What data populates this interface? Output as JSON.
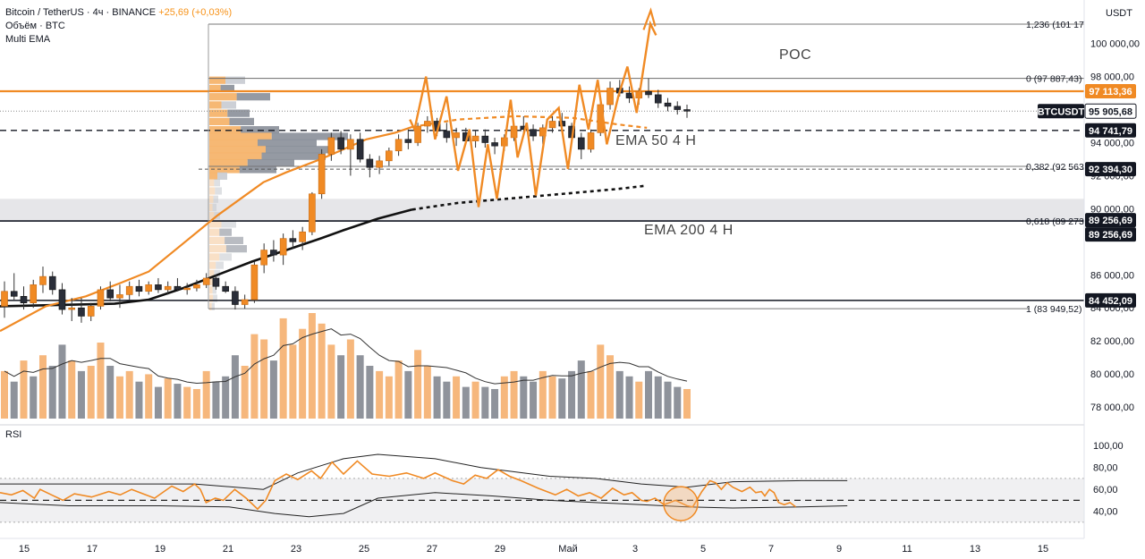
{
  "header": {
    "symbol": "Bitcoin / TetherUS · 4ч · BINANCE",
    "change": "+25,69 (+0,03%)",
    "volume_label": "Объём · BTC",
    "ema_label": "Multi EMA",
    "currency": "USDT",
    "rsi_label": "RSI"
  },
  "chart_data": {
    "type": "line",
    "symbol": "BTCUSDT",
    "timeframe": "4ч",
    "x_ticks": [
      "15",
      "17",
      "19",
      "21",
      "23",
      "25",
      "27",
      "29",
      "Май",
      "3",
      "5",
      "7",
      "9",
      "11",
      "13",
      "15"
    ],
    "y_ticks": [
      "100 000,00",
      "98 000,00",
      "94 000,00",
      "92 000,00",
      "90 000,00",
      "86 000,00",
      "84 000,00",
      "82 000,00",
      "80 000,00",
      "78 000,00"
    ],
    "rsi_ticks": [
      "100,00",
      "80,00",
      "60,00",
      "40,00"
    ],
    "price_tags": [
      {
        "text": "97 113,36",
        "value": 97113.36,
        "style": "orange"
      },
      {
        "text": "BTCUSDT",
        "value": 95905.68,
        "style": "dark-name"
      },
      {
        "text": "95 905,68",
        "value": 95905.68,
        "style": "white"
      },
      {
        "text": "94 741,79",
        "value": 94741.79,
        "style": "dark"
      },
      {
        "text": "92 394,30",
        "value": 92394.3,
        "style": "dark"
      },
      {
        "text": "89 256,69",
        "value": 89256.69,
        "style": "dark"
      },
      {
        "text": "89 256,69",
        "value": 89256.69,
        "style": "dark"
      },
      {
        "text": "84 452,09",
        "value": 84452.09,
        "style": "dark"
      }
    ],
    "fib_levels": [
      {
        "label": "0 (97 887,43)",
        "value": 97887.43
      },
      {
        "label": "0,382 (92 563",
        "value": 92563
      },
      {
        "label": "0,618 (89 273",
        "value": 89273
      },
      {
        "label": "1 (83 949,52)",
        "value": 83949.52
      },
      {
        "label": "1,236 (101 17",
        "value": 101170
      }
    ],
    "annotations": [
      "POC",
      "EMA 50 4 H",
      "EMA 200 4 H"
    ],
    "candles": [
      [
        84100,
        85600,
        83400,
        85000
      ],
      [
        85000,
        86100,
        84500,
        84700
      ],
      [
        84700,
        85300,
        83900,
        84300
      ],
      [
        84300,
        85700,
        84000,
        85400
      ],
      [
        85400,
        86500,
        84900,
        85900
      ],
      [
        85900,
        86200,
        84800,
        85100
      ],
      [
        85100,
        85500,
        83600,
        83900
      ],
      [
        83900,
        84600,
        83200,
        84000
      ],
      [
        84000,
        84600,
        83100,
        83500
      ],
      [
        83500,
        84300,
        83200,
        84100
      ],
      [
        84100,
        85300,
        83900,
        85100
      ],
      [
        85100,
        85600,
        84400,
        84600
      ],
      [
        84600,
        85400,
        84000,
        84800
      ],
      [
        84800,
        85600,
        84500,
        85300
      ],
      [
        85300,
        85700,
        84700,
        85000
      ],
      [
        85000,
        85600,
        84800,
        85400
      ],
      [
        85400,
        85800,
        84900,
        85100
      ],
      [
        85100,
        85600,
        84800,
        85300
      ],
      [
        85300,
        85800,
        85000,
        85100
      ],
      [
        85100,
        85500,
        84800,
        85200
      ],
      [
        85200,
        85700,
        85000,
        85400
      ],
      [
        85400,
        86100,
        85200,
        85800
      ],
      [
        85800,
        86000,
        85100,
        85300
      ],
      [
        85300,
        85600,
        84900,
        85000
      ],
      [
        85000,
        85300,
        83900,
        84200
      ],
      [
        84200,
        84800,
        83949,
        84500
      ],
      [
        84500,
        86800,
        84300,
        86600
      ],
      [
        86600,
        87900,
        86100,
        87500
      ],
      [
        87500,
        88100,
        86800,
        87200
      ],
      [
        87200,
        88500,
        86600,
        88200
      ],
      [
        88200,
        88700,
        87600,
        88000
      ],
      [
        88000,
        88900,
        87500,
        88600
      ],
      [
        88600,
        91000,
        88400,
        90900
      ],
      [
        90900,
        93600,
        90600,
        93300
      ],
      [
        93300,
        94600,
        92900,
        94300
      ],
      [
        94300,
        94700,
        93300,
        93600
      ],
      [
        93600,
        94500,
        92000,
        94200
      ],
      [
        94200,
        94600,
        92800,
        93000
      ],
      [
        93000,
        93300,
        91900,
        92500
      ],
      [
        92500,
        93200,
        92100,
        92900
      ],
      [
        92900,
        93700,
        92600,
        93500
      ],
      [
        93500,
        94500,
        93200,
        94200
      ],
      [
        94200,
        94800,
        93600,
        94000
      ],
      [
        94000,
        95200,
        93800,
        95000
      ],
      [
        95000,
        95600,
        94600,
        95300
      ],
      [
        95300,
        95500,
        94400,
        94700
      ],
      [
        94700,
        95200,
        94000,
        94300
      ],
      [
        94300,
        94900,
        93800,
        94600
      ],
      [
        94600,
        94900,
        93900,
        94100
      ],
      [
        94100,
        94700,
        93700,
        94400
      ],
      [
        94400,
        94800,
        93700,
        94000
      ],
      [
        94000,
        94300,
        93300,
        93800
      ],
      [
        93800,
        94500,
        93500,
        94300
      ],
      [
        94300,
        95200,
        94100,
        95000
      ],
      [
        95000,
        95600,
        94500,
        94800
      ],
      [
        94800,
        95100,
        94100,
        94400
      ],
      [
        94400,
        95100,
        93900,
        94900
      ],
      [
        94900,
        95600,
        94600,
        95300
      ],
      [
        95300,
        95800,
        94700,
        95000
      ],
      [
        95000,
        95200,
        94100,
        94300
      ],
      [
        94300,
        94600,
        93000,
        93600
      ],
      [
        93600,
        94800,
        93400,
        94600
      ],
      [
        94600,
        96500,
        94400,
        96300
      ],
      [
        96300,
        97700,
        96000,
        97300
      ],
      [
        97300,
        97800,
        96800,
        97000
      ],
      [
        97000,
        97400,
        96400,
        96700
      ],
      [
        96700,
        97300,
        96300,
        97100
      ],
      [
        97100,
        97887,
        96700,
        96900
      ],
      [
        96900,
        97200,
        96100,
        96400
      ],
      [
        96400,
        96700,
        95900,
        96200
      ],
      [
        96200,
        96500,
        95700,
        96000
      ],
      [
        96000,
        96300,
        95500,
        95906
      ]
    ],
    "volume": [
      [
        0.45,
        0
      ],
      [
        0.35,
        1
      ],
      [
        0.55,
        0
      ],
      [
        0.4,
        1
      ],
      [
        0.6,
        0
      ],
      [
        0.5,
        1
      ],
      [
        0.7,
        1
      ],
      [
        0.55,
        0
      ],
      [
        0.45,
        1
      ],
      [
        0.5,
        0
      ],
      [
        0.72,
        0
      ],
      [
        0.5,
        1
      ],
      [
        0.4,
        0
      ],
      [
        0.45,
        0
      ],
      [
        0.35,
        1
      ],
      [
        0.42,
        0
      ],
      [
        0.3,
        1
      ],
      [
        0.38,
        0
      ],
      [
        0.33,
        1
      ],
      [
        0.3,
        0
      ],
      [
        0.28,
        0
      ],
      [
        0.45,
        0
      ],
      [
        0.35,
        1
      ],
      [
        0.4,
        1
      ],
      [
        0.6,
        1
      ],
      [
        0.5,
        0
      ],
      [
        0.8,
        0
      ],
      [
        0.75,
        0
      ],
      [
        0.55,
        1
      ],
      [
        0.95,
        0
      ],
      [
        0.7,
        0
      ],
      [
        0.85,
        0
      ],
      [
        1.0,
        0
      ],
      [
        0.9,
        0
      ],
      [
        0.7,
        0
      ],
      [
        0.6,
        1
      ],
      [
        0.75,
        0
      ],
      [
        0.6,
        1
      ],
      [
        0.5,
        1
      ],
      [
        0.45,
        0
      ],
      [
        0.4,
        0
      ],
      [
        0.55,
        0
      ],
      [
        0.45,
        1
      ],
      [
        0.65,
        0
      ],
      [
        0.5,
        0
      ],
      [
        0.4,
        1
      ],
      [
        0.35,
        1
      ],
      [
        0.4,
        0
      ],
      [
        0.3,
        1
      ],
      [
        0.35,
        0
      ],
      [
        0.3,
        1
      ],
      [
        0.28,
        1
      ],
      [
        0.4,
        0
      ],
      [
        0.45,
        0
      ],
      [
        0.4,
        1
      ],
      [
        0.35,
        1
      ],
      [
        0.45,
        0
      ],
      [
        0.4,
        0
      ],
      [
        0.38,
        1
      ],
      [
        0.45,
        1
      ],
      [
        0.55,
        1
      ],
      [
        0.45,
        0
      ],
      [
        0.7,
        0
      ],
      [
        0.6,
        0
      ],
      [
        0.45,
        1
      ],
      [
        0.4,
        1
      ],
      [
        0.35,
        0
      ],
      [
        0.45,
        1
      ],
      [
        0.4,
        1
      ],
      [
        0.35,
        1
      ],
      [
        0.3,
        1
      ],
      [
        0.28,
        0
      ]
    ],
    "ema50": [
      [
        0,
        82600
      ],
      [
        40,
        84100
      ],
      [
        75,
        84700
      ],
      [
        105,
        85500
      ],
      [
        130,
        86200
      ],
      [
        160,
        87900
      ],
      [
        190,
        89600
      ],
      [
        210,
        90600
      ],
      [
        230,
        91600
      ],
      [
        250,
        92200
      ],
      [
        280,
        93000
      ],
      [
        300,
        93600
      ],
      [
        320,
        94200
      ],
      [
        345,
        94600
      ],
      [
        360,
        94950
      ]
    ],
    "ema200": [
      [
        0,
        84100
      ],
      [
        100,
        84250
      ],
      [
        130,
        84500
      ],
      [
        160,
        85200
      ],
      [
        190,
        86000
      ],
      [
        220,
        86800
      ],
      [
        250,
        87500
      ],
      [
        280,
        88200
      ],
      [
        300,
        88700
      ],
      [
        330,
        89400
      ],
      [
        360,
        89950
      ]
    ],
    "ema50_projection": [
      [
        360,
        94950
      ],
      [
        400,
        95400
      ],
      [
        450,
        95600
      ],
      [
        500,
        95500
      ],
      [
        540,
        95100
      ],
      [
        565,
        94900
      ]
    ],
    "ema200_projection": [
      [
        360,
        89950
      ],
      [
        400,
        90350
      ],
      [
        450,
        90650
      ],
      [
        500,
        90950
      ],
      [
        540,
        91200
      ],
      [
        565,
        91400
      ]
    ],
    "forecast_path": [
      [
        358,
        95400
      ],
      [
        362,
        94800
      ],
      [
        372,
        98000
      ],
      [
        380,
        94200
      ],
      [
        390,
        96800
      ],
      [
        400,
        92300
      ],
      [
        410,
        94800
      ],
      [
        418,
        90100
      ],
      [
        426,
        93900
      ],
      [
        434,
        90600
      ],
      [
        446,
        96600
      ],
      [
        452,
        93100
      ],
      [
        460,
        95200
      ],
      [
        468,
        90800
      ],
      [
        478,
        95400
      ],
      [
        488,
        96100
      ],
      [
        496,
        92400
      ],
      [
        506,
        97500
      ],
      [
        514,
        94800
      ],
      [
        522,
        97800
      ],
      [
        530,
        93900
      ],
      [
        540,
        96800
      ],
      [
        548,
        98600
      ],
      [
        556,
        95800
      ],
      [
        568,
        101200
      ],
      [
        573,
        100500
      ]
    ],
    "forecast_arrow_tip": [
      573,
      100500
    ],
    "rsi": [
      [
        0,
        57
      ],
      [
        10,
        55
      ],
      [
        20,
        59
      ],
      [
        30,
        52
      ],
      [
        35,
        60
      ],
      [
        45,
        55
      ],
      [
        55,
        50
      ],
      [
        65,
        56
      ],
      [
        80,
        53
      ],
      [
        95,
        58
      ],
      [
        105,
        55
      ],
      [
        115,
        60
      ],
      [
        125,
        56
      ],
      [
        135,
        52
      ],
      [
        150,
        63
      ],
      [
        160,
        58
      ],
      [
        170,
        65
      ],
      [
        175,
        60
      ],
      [
        180,
        48
      ],
      [
        188,
        52
      ],
      [
        195,
        50
      ],
      [
        205,
        60
      ],
      [
        215,
        52
      ],
      [
        225,
        42
      ],
      [
        232,
        50
      ],
      [
        240,
        68
      ],
      [
        250,
        74
      ],
      [
        260,
        69
      ],
      [
        272,
        77
      ],
      [
        280,
        70
      ],
      [
        290,
        85
      ],
      [
        300,
        74
      ],
      [
        312,
        86
      ],
      [
        325,
        74
      ],
      [
        340,
        72
      ],
      [
        355,
        75
      ],
      [
        370,
        70
      ],
      [
        380,
        75
      ],
      [
        395,
        68
      ],
      [
        405,
        65
      ],
      [
        415,
        73
      ],
      [
        425,
        70
      ],
      [
        435,
        78
      ],
      [
        445,
        72
      ],
      [
        455,
        68
      ],
      [
        470,
        61
      ],
      [
        485,
        55
      ],
      [
        495,
        60
      ],
      [
        505,
        54
      ],
      [
        515,
        57
      ],
      [
        525,
        52
      ],
      [
        535,
        61
      ],
      [
        545,
        55
      ],
      [
        552,
        57
      ],
      [
        560,
        50
      ],
      [
        565,
        49
      ],
      [
        572,
        52
      ],
      [
        580,
        46
      ],
      [
        590,
        50
      ],
      [
        600,
        45
      ],
      [
        605,
        44
      ],
      [
        613,
        58
      ],
      [
        620,
        68
      ],
      [
        625,
        66
      ],
      [
        630,
        60
      ],
      [
        635,
        66
      ],
      [
        640,
        62
      ],
      [
        648,
        58
      ],
      [
        655,
        62
      ],
      [
        660,
        57
      ],
      [
        665,
        58
      ],
      [
        668,
        54
      ],
      [
        672,
        60
      ],
      [
        676,
        57
      ],
      [
        680,
        48
      ],
      [
        685,
        46
      ],
      [
        690,
        48
      ],
      [
        695,
        44
      ]
    ],
    "rsi_band_upper": [
      [
        0,
        65
      ],
      [
        80,
        65
      ],
      [
        170,
        65
      ],
      [
        230,
        60
      ],
      [
        260,
        75
      ],
      [
        300,
        88
      ],
      [
        330,
        92
      ],
      [
        380,
        88
      ],
      [
        420,
        80
      ],
      [
        480,
        72
      ],
      [
        520,
        70
      ],
      [
        560,
        65
      ],
      [
        600,
        62
      ],
      [
        640,
        67
      ],
      [
        700,
        68
      ],
      [
        740,
        68
      ]
    ],
    "rsi_band_lower": [
      [
        0,
        48
      ],
      [
        60,
        45
      ],
      [
        140,
        45
      ],
      [
        200,
        44
      ],
      [
        240,
        38
      ],
      [
        270,
        35
      ],
      [
        300,
        38
      ],
      [
        330,
        52
      ],
      [
        380,
        57
      ],
      [
        430,
        54
      ],
      [
        480,
        50
      ],
      [
        520,
        48
      ],
      [
        560,
        46
      ],
      [
        600,
        44
      ],
      [
        640,
        43
      ],
      [
        700,
        44
      ],
      [
        740,
        45
      ]
    ],
    "rsi_levels": [
      70,
      50,
      30
    ],
    "y_range": [
      77300,
      102200
    ],
    "rsi_range": [
      25,
      101
    ]
  }
}
